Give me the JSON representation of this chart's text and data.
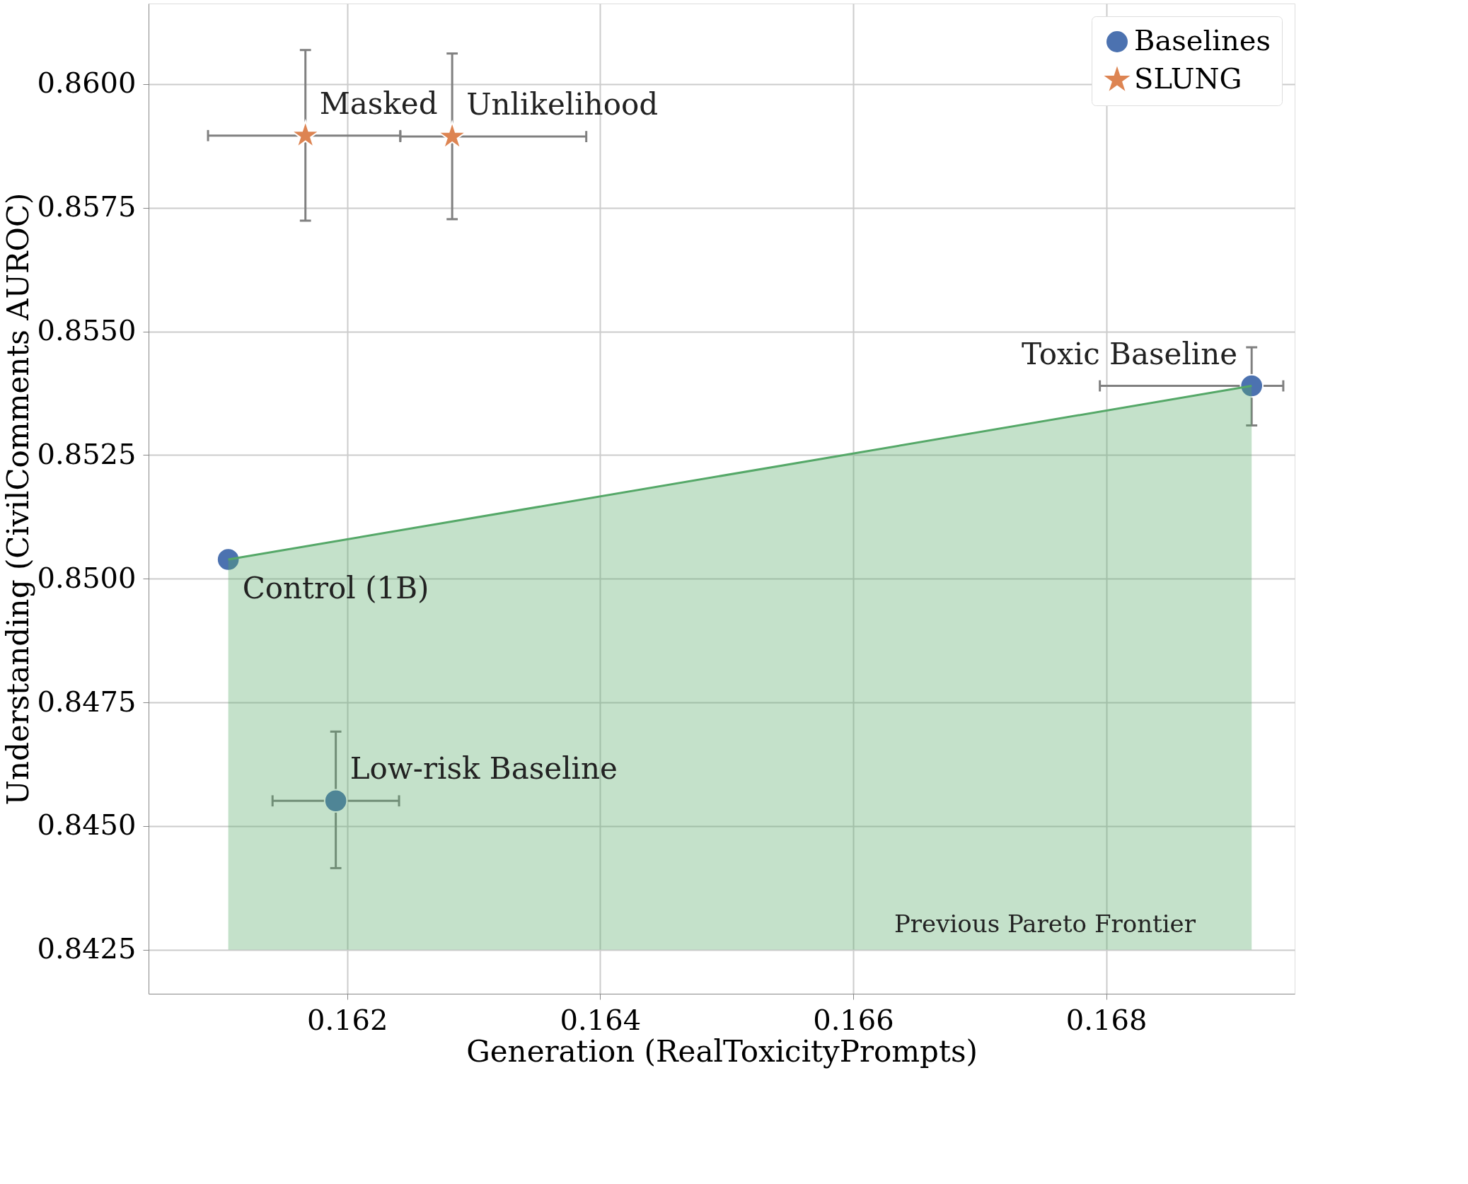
{
  "chart_data": {
    "type": "scatter",
    "xlabel": "Generation (RealToxicityPrompts)",
    "ylabel": "Understanding (CivilComments AUROC)",
    "xlim": [
      0.16043,
      0.16949
    ],
    "ylim": [
      0.84161,
      0.86163
    ],
    "xticks": [
      0.162,
      0.164,
      0.166,
      0.168
    ],
    "yticks": [
      {
        "value": 0.8425,
        "label": "0.8425"
      },
      {
        "value": 0.845,
        "label": "0.8450"
      },
      {
        "value": 0.8475,
        "label": "0.8475"
      },
      {
        "value": 0.85,
        "label": "0.8500"
      },
      {
        "value": 0.8525,
        "label": "0.8525"
      },
      {
        "value": 0.855,
        "label": "0.8550"
      },
      {
        "value": 0.8575,
        "label": "0.8575"
      },
      {
        "value": 0.86,
        "label": "0.8600"
      }
    ],
    "grid": true,
    "legend": "top right",
    "series": [
      {
        "type": "line",
        "color": "#55a868",
        "x": [
          0.16106,
          0.16915
        ],
        "values": [
          0.85039,
          0.8539
        ],
        "lower": [
          0.8425,
          0.8425
        ],
        "upper": [
          0.85039,
          0.8539
        ]
      },
      {
        "name": "Baselines",
        "color": "#4c72b0",
        "marker": "circle",
        "x": [
          0.16106,
          0.16191,
          0.16915
        ],
        "values": [
          0.85039,
          0.84551,
          0.8539
        ],
        "errors": [
          null,
          [
            0.84415,
            0.84691
          ],
          [
            0.8531,
            0.85468
          ]
        ],
        "xerrors": [
          null,
          [
            0.16141,
            0.16241
          ],
          [
            0.16795,
            0.1694
          ]
        ]
      },
      {
        "name": "SLUNG",
        "color": "#dd8452",
        "marker": "star",
        "x": [
          0.16167,
          0.16283
        ],
        "values": [
          0.85896,
          0.85894
        ],
        "errors": [
          [
            0.85724,
            0.86069
          ],
          [
            0.85727,
            0.86062
          ]
        ],
        "xerrors": [
          [
            0.1609,
            0.16242
          ],
          [
            0.16242,
            0.16389
          ]
        ]
      }
    ],
    "annotations": [
      {
        "text": "Masked",
        "x": 0.16167,
        "y": 0.85896
      },
      {
        "text": "Unlikelihood",
        "x": 0.16283,
        "y": 0.85894
      },
      {
        "text": "Toxic Baseline",
        "x": 0.16915,
        "y": 0.8539
      },
      {
        "text": "Control (1B)",
        "x": 0.16106,
        "y": 0.85039
      },
      {
        "text": "Low-risk Baseline",
        "x": 0.16191,
        "y": 0.84551
      },
      "Previous Pareto Frontier"
    ]
  }
}
